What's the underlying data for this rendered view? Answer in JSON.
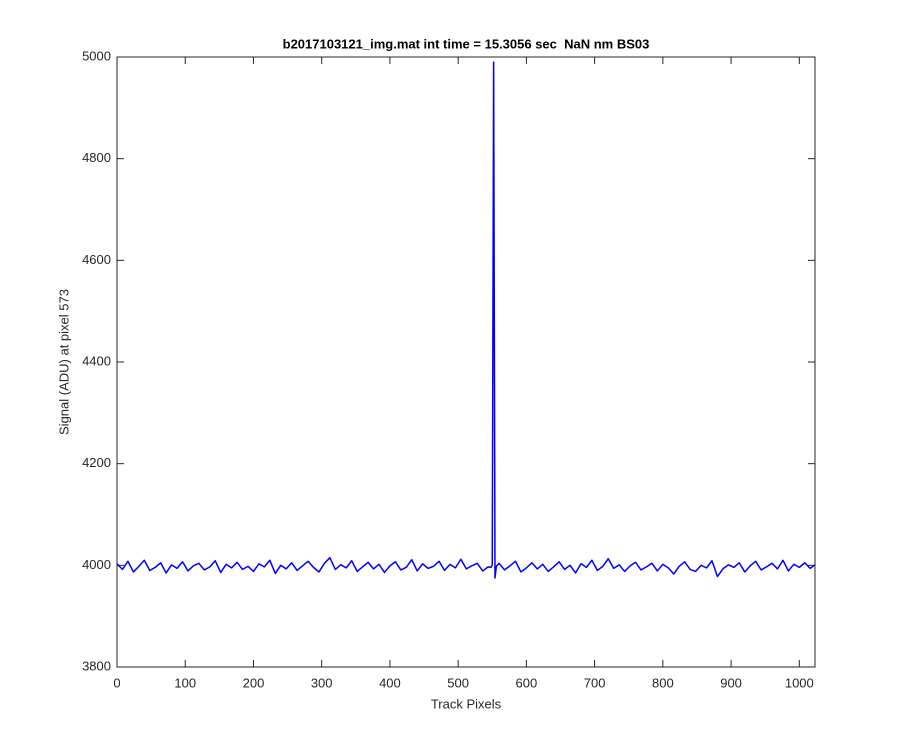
{
  "chart_data": {
    "type": "line",
    "title": "b2017103121_img.mat int time = 15.3056 sec  NaN nm BS03",
    "x_label": "Track Pixels",
    "y_label": "Signal (ADU) at pixel 573",
    "xlim": [
      0,
      1023
    ],
    "xticks": [
      0,
      100,
      200,
      300,
      400,
      500,
      600,
      700,
      800,
      900,
      1000
    ],
    "ylim": [
      3800,
      5000
    ],
    "yticks": [
      3800,
      4000,
      4200,
      4400,
      4600,
      4800,
      5000
    ],
    "x": [
      0,
      8,
      16,
      24,
      32,
      40,
      48,
      56,
      64,
      72,
      80,
      88,
      96,
      104,
      112,
      120,
      128,
      136,
      144,
      152,
      160,
      168,
      176,
      184,
      192,
      200,
      208,
      216,
      224,
      232,
      240,
      248,
      256,
      264,
      272,
      280,
      288,
      296,
      304,
      312,
      320,
      328,
      336,
      344,
      352,
      360,
      368,
      376,
      384,
      392,
      400,
      408,
      416,
      424,
      432,
      440,
      448,
      456,
      464,
      472,
      480,
      488,
      496,
      504,
      512,
      520,
      528,
      536,
      544,
      548,
      550,
      552,
      554,
      556,
      560,
      568,
      576,
      584,
      592,
      600,
      608,
      616,
      624,
      632,
      640,
      648,
      656,
      664,
      672,
      680,
      688,
      696,
      704,
      712,
      720,
      728,
      736,
      744,
      752,
      760,
      768,
      776,
      784,
      792,
      800,
      808,
      816,
      824,
      832,
      840,
      848,
      856,
      864,
      872,
      880,
      888,
      896,
      904,
      912,
      920,
      928,
      936,
      944,
      952,
      960,
      968,
      976,
      984,
      992,
      1000,
      1008,
      1016,
      1023
    ],
    "series": [
      {
        "color": "#0000ff",
        "values": [
          4003,
          3992,
          4008,
          3987,
          3998,
          4010,
          3990,
          3996,
          4005,
          3985,
          4001,
          3994,
          4007,
          3989,
          3999,
          4004,
          3991,
          3997,
          4009,
          3986,
          4002,
          3995,
          4006,
          3992,
          3998,
          3988,
          4003,
          3997,
          4010,
          3984,
          4000,
          3993,
          4005,
          3990,
          3999,
          4008,
          3996,
          3987,
          4004,
          4015,
          3992,
          4001,
          3995,
          4009,
          3988,
          3997,
          4006,
          3993,
          4002,
          3986,
          3999,
          4007,
          3991,
          3996,
          4011,
          3989,
          4003,
          3994,
          3998,
          4008,
          3990,
          4002,
          3995,
          4012,
          3993,
          3999,
          4004,
          3989,
          3997,
          3996,
          4001,
          4990,
          3975,
          3998,
          4004,
          3991,
          3999,
          4008,
          3987,
          3995,
          4005,
          3993,
          4002,
          3988,
          3997,
          4007,
          3992,
          4000,
          3985,
          4003,
          3996,
          4010,
          3990,
          3998,
          4013,
          3994,
          4001,
          3988,
          3999,
          4006,
          3991,
          3997,
          4004,
          3989,
          4002,
          3995,
          3983,
          3998,
          4007,
          3992,
          3988,
          4000,
          3995,
          4009,
          3978,
          3993,
          4001,
          3996,
          4005,
          3987,
          3999,
          4008,
          3991,
          3997,
          4004,
          3993,
          4010,
          3989,
          4002,
          3996,
          4005,
          3994,
          4001
        ]
      }
    ]
  }
}
